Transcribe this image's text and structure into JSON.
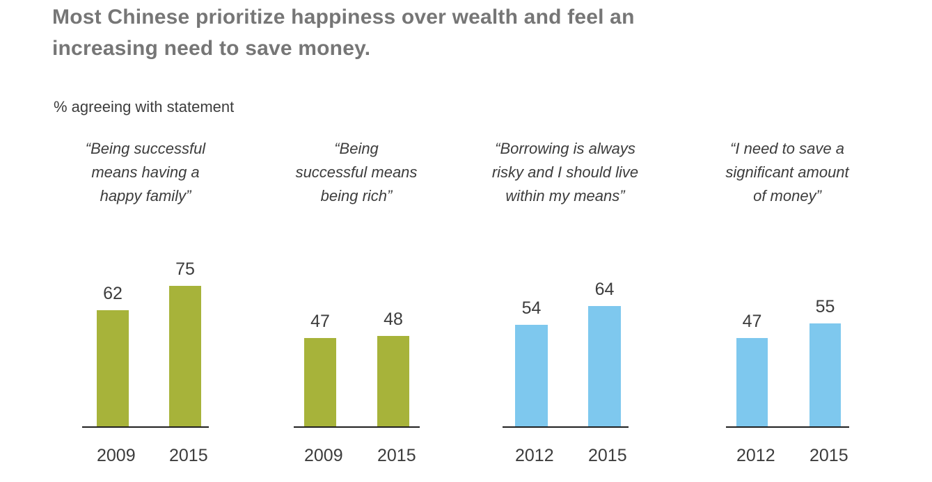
{
  "colors": {
    "title_text": "#767676",
    "body_text": "#3c3c3c",
    "axis_line": "#1f1f1f",
    "green_bar": "#a7b33a",
    "blue_bar": "#7ec8ee"
  },
  "chart_data": {
    "type": "bar",
    "title": "Most Chinese prioritize happiness over wealth and feel an increasing need to save money.",
    "title_lines": [
      "Most Chinese prioritize happiness over wealth and feel an",
      "increasing need to save money."
    ],
    "subtitle": "% agreeing with statement",
    "unit": "%",
    "ylim": [
      0,
      80
    ],
    "grid": false,
    "legend": "none",
    "panels": [
      {
        "statement": "“Being successful means having a happy family”",
        "statement_lines": [
          "“Being successful",
          "means having a",
          "happy family”"
        ],
        "categories": [
          "2009",
          "2015"
        ],
        "values": [
          62,
          75
        ],
        "color": "#a7b33a"
      },
      {
        "statement": "“Being successful means being rich”",
        "statement_lines": [
          "“Being",
          "successful means",
          "being rich”"
        ],
        "categories": [
          "2009",
          "2015"
        ],
        "values": [
          47,
          48
        ],
        "color": "#a7b33a"
      },
      {
        "statement": "“Borrowing is always risky and I should live within my means”",
        "statement_lines": [
          "“Borrowing is always",
          "risky and I should live",
          "within my means”"
        ],
        "categories": [
          "2012",
          "2015"
        ],
        "values": [
          54,
          64
        ],
        "color": "#7ec8ee"
      },
      {
        "statement": "“I need to save a significant amount of money”",
        "statement_lines": [
          "“I need to save a",
          "significant amount",
          "of money”"
        ],
        "categories": [
          "2012",
          "2015"
        ],
        "values": [
          47,
          55
        ],
        "color": "#7ec8ee"
      }
    ]
  }
}
